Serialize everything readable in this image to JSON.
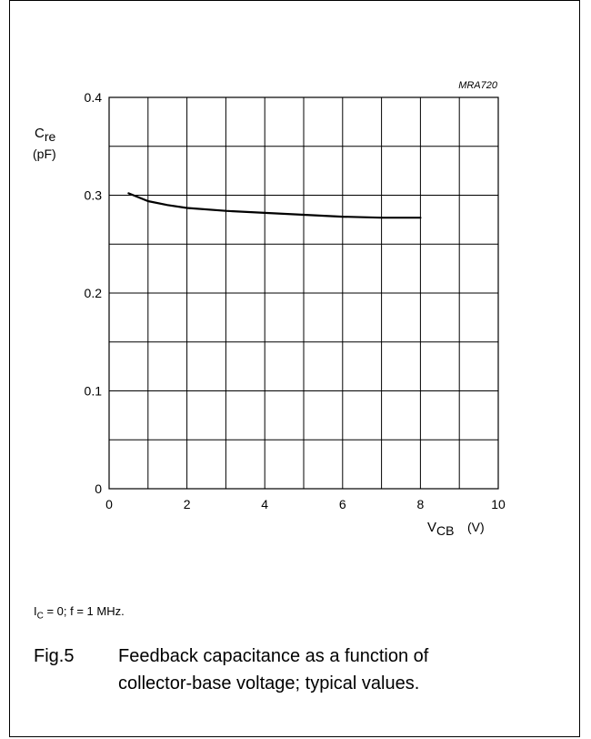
{
  "chart_data": {
    "type": "line",
    "code": "MRA720",
    "ylabel_main": "C",
    "ylabel_sub": "re",
    "ylabel_unit": "(pF)",
    "xlabel_main": "V",
    "xlabel_sub": "CB",
    "xlabel_unit": "(V)",
    "xlim": [
      0,
      10
    ],
    "ylim": [
      0,
      0.4
    ],
    "x_ticks": [
      "0",
      "2",
      "4",
      "6",
      "8",
      "10"
    ],
    "y_ticks": [
      "0",
      "0.1",
      "0.2",
      "0.3",
      "0.4"
    ],
    "grid": true,
    "series": [
      {
        "x": [
          0.5,
          1,
          1.5,
          2,
          3,
          4,
          5,
          6,
          7,
          8
        ],
        "y": [
          0.302,
          0.294,
          0.29,
          0.287,
          0.284,
          0.282,
          0.28,
          0.278,
          0.277,
          0.277
        ]
      }
    ]
  },
  "note": {
    "i_main": "I",
    "i_sub": "C",
    "rest": " = 0; f = 1 MHz."
  },
  "caption": {
    "fig": "Fig.5",
    "line1": "Feedback capacitance as a function of",
    "line2": "collector-base voltage; typical values."
  }
}
